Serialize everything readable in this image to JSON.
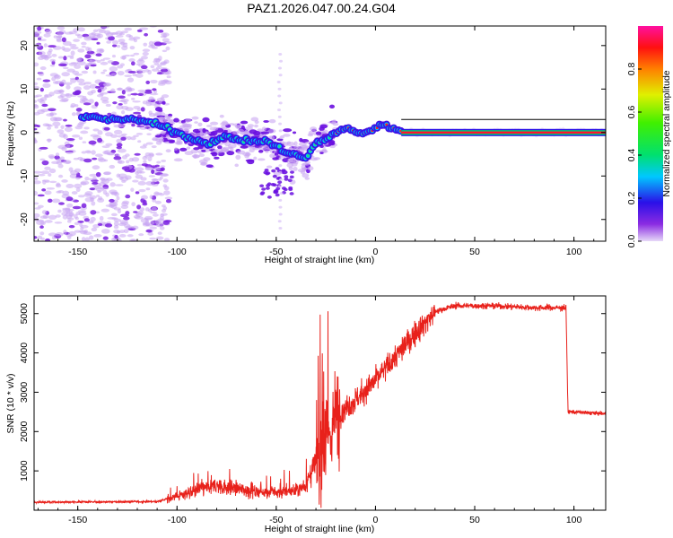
{
  "title": "PAZ1.2026.047.00.24.G04",
  "chart_data": [
    {
      "type": "heatmap",
      "panel": "spectrogram",
      "xlabel": "Height of straight line (km)",
      "ylabel": "Frequency (Hz)",
      "xlim": [
        -172,
        116
      ],
      "ylim": [
        -25,
        24.5
      ],
      "xticks": [
        -150,
        -100,
        -50,
        0,
        50,
        100
      ],
      "yticks": [
        -20,
        -10,
        0,
        10,
        20
      ],
      "colorbar": {
        "label": "Normalized spectral amplitude",
        "ticks": [
          "0.0",
          "0.2",
          "0.4",
          "0.6",
          "0.8"
        ],
        "range": [
          0,
          1
        ]
      },
      "ridge": {
        "description": "dominant frequency track",
        "x": [
          -145,
          -135,
          -125,
          -115,
          -105,
          -95,
          -85,
          -75,
          -65,
          -55,
          -45,
          -35,
          -30,
          -25,
          -20,
          -15,
          -10,
          -5,
          0,
          5,
          10,
          15,
          115
        ],
        "freq": [
          3.5,
          3.2,
          3.0,
          2.5,
          1.0,
          -1.0,
          -2.5,
          -1.0,
          -2.0,
          -2.0,
          -4.5,
          -6.0,
          -2.5,
          -1.5,
          0.0,
          1.0,
          0.0,
          0.0,
          1.0,
          2.0,
          0.5,
          0.5,
          0.0
        ]
      }
    },
    {
      "type": "line",
      "panel": "snr",
      "xlabel": "Height of straight line (km)",
      "ylabel": "SNR (10 * v/v)",
      "xlim": [
        -172,
        116
      ],
      "ylim": [
        0,
        5450
      ],
      "xticks": [
        -150,
        -100,
        -50,
        0,
        50,
        100
      ],
      "yticks": [
        1000,
        2000,
        3000,
        4000,
        5000
      ],
      "color": "#e8211b",
      "trend": {
        "x": [
          -172,
          -110,
          -100,
          -90,
          -80,
          -70,
          -60,
          -50,
          -40,
          -35,
          -30,
          -25,
          -20,
          -10,
          0,
          10,
          20,
          30,
          40,
          60,
          80,
          96,
          97,
          100,
          116
        ],
        "snr": [
          200,
          220,
          350,
          520,
          620,
          550,
          480,
          450,
          500,
          650,
          1200,
          1600,
          2400,
          2800,
          3300,
          3900,
          4500,
          5050,
          5200,
          5200,
          5150,
          5150,
          2500,
          2500,
          2450
        ]
      }
    }
  ]
}
